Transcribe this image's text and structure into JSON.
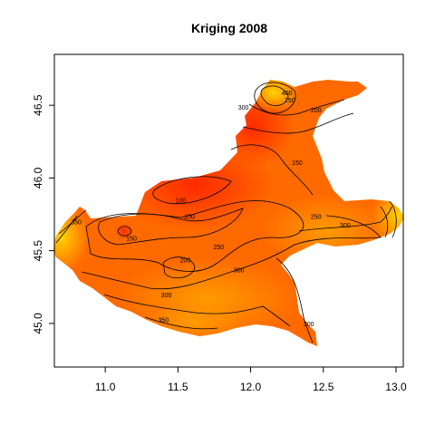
{
  "chart_data": {
    "type": "heatmap",
    "title": "Kriging 2008",
    "xlabel": "",
    "ylabel": "",
    "xlim": [
      10.65,
      13.05
    ],
    "ylim": [
      44.7,
      46.85
    ],
    "x_ticks": [
      11.0,
      11.5,
      12.0,
      12.5,
      13.0
    ],
    "x_tick_labels": [
      "11.0",
      "11.5",
      "12.0",
      "12.5",
      "13.0"
    ],
    "y_ticks": [
      45.0,
      45.5,
      46.0,
      46.5
    ],
    "y_tick_labels": [
      "45.0",
      "45.5",
      "46.0",
      "46.5"
    ],
    "colors": {
      "low": "#ff2a00",
      "mid": "#ff7a00",
      "high": "#ffd200"
    },
    "contour_labels": [
      {
        "text": "100",
        "x": 11.52,
        "y": 45.83
      },
      {
        "text": "150",
        "x": 11.18,
        "y": 45.57
      },
      {
        "text": "200",
        "x": 11.58,
        "y": 45.72
      },
      {
        "text": "250",
        "x": 11.78,
        "y": 45.51
      },
      {
        "text": "200",
        "x": 11.55,
        "y": 45.42
      },
      {
        "text": "300",
        "x": 11.92,
        "y": 45.35
      },
      {
        "text": "300",
        "x": 11.42,
        "y": 45.18
      },
      {
        "text": "350",
        "x": 11.4,
        "y": 45.01
      },
      {
        "text": "250",
        "x": 12.45,
        "y": 45.72
      },
      {
        "text": "300",
        "x": 12.65,
        "y": 45.66
      },
      {
        "text": "200",
        "x": 12.45,
        "y": 46.45
      },
      {
        "text": "250",
        "x": 12.27,
        "y": 46.52
      },
      {
        "text": "300",
        "x": 11.95,
        "y": 46.47
      },
      {
        "text": "150",
        "x": 12.32,
        "y": 46.09
      },
      {
        "text": "400",
        "x": 12.25,
        "y": 46.57
      },
      {
        "text": "300",
        "x": 12.4,
        "y": 44.98
      },
      {
        "text": "350",
        "x": 10.8,
        "y": 45.68
      }
    ]
  }
}
